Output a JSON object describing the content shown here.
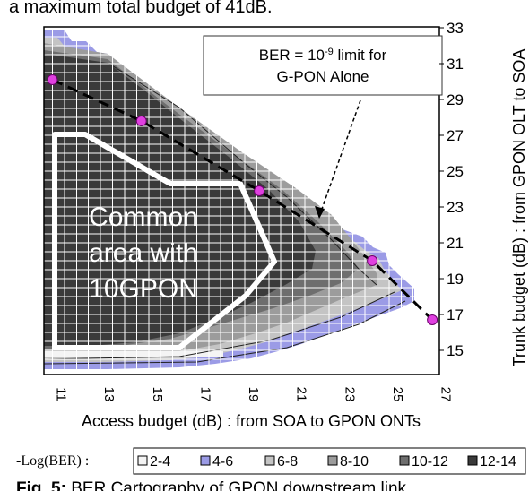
{
  "header_text": "a maximum total budget of 41dB.",
  "chart_data": {
    "type": "heatmap",
    "xlabel": "Access budget (dB) : from SOA to GPON ONTs",
    "ylabel": "Trunk budget (dB) : from GPON OLT to SOA",
    "xlim": [
      11,
      27
    ],
    "ylim": [
      14,
      33
    ],
    "x_ticks": [
      11,
      13,
      15,
      17,
      19,
      21,
      23,
      25,
      27
    ],
    "y_ticks": [
      15,
      17,
      19,
      21,
      23,
      25,
      27,
      29,
      31,
      33
    ],
    "grid": true,
    "annotation_box": [
      "BER = 10",
      "-9",
      " limit for",
      "G-PON Alone"
    ],
    "region_label": [
      "Common",
      "area with",
      "10GPON"
    ],
    "g_pon_limit_points": [
      {
        "x": 11.0,
        "y": 30.1
      },
      {
        "x": 14.7,
        "y": 27.8
      },
      {
        "x": 19.6,
        "y": 23.9
      },
      {
        "x": 24.3,
        "y": 20.0
      },
      {
        "x": 26.8,
        "y": 16.7
      }
    ],
    "legend": {
      "title": "-Log(BER) :",
      "entries": [
        {
          "label": "2-4",
          "color": "#f4f4f4"
        },
        {
          "label": "4-6",
          "color": "#9b9be6"
        },
        {
          "label": "6-8",
          "color": "#c4c4c4"
        },
        {
          "label": "8-10",
          "color": "#9c9c9c"
        },
        {
          "label": "10-12",
          "color": "#6e6e6e"
        },
        {
          "label": "12-14",
          "color": "#3a3a3a"
        }
      ]
    },
    "colors": {
      "level_2_4": "#f4f4f4",
      "level_4_6": "#9b9be6",
      "level_6_8": "#c4c4c4",
      "level_8_10": "#9c9c9c",
      "level_10_12": "#6e6e6e",
      "level_12_14": "#3a3a3a",
      "marker": "#e040e0"
    }
  },
  "caption": {
    "prefix": "Fig. 5:",
    "text": " BER Cartography of GPON downstream link"
  }
}
